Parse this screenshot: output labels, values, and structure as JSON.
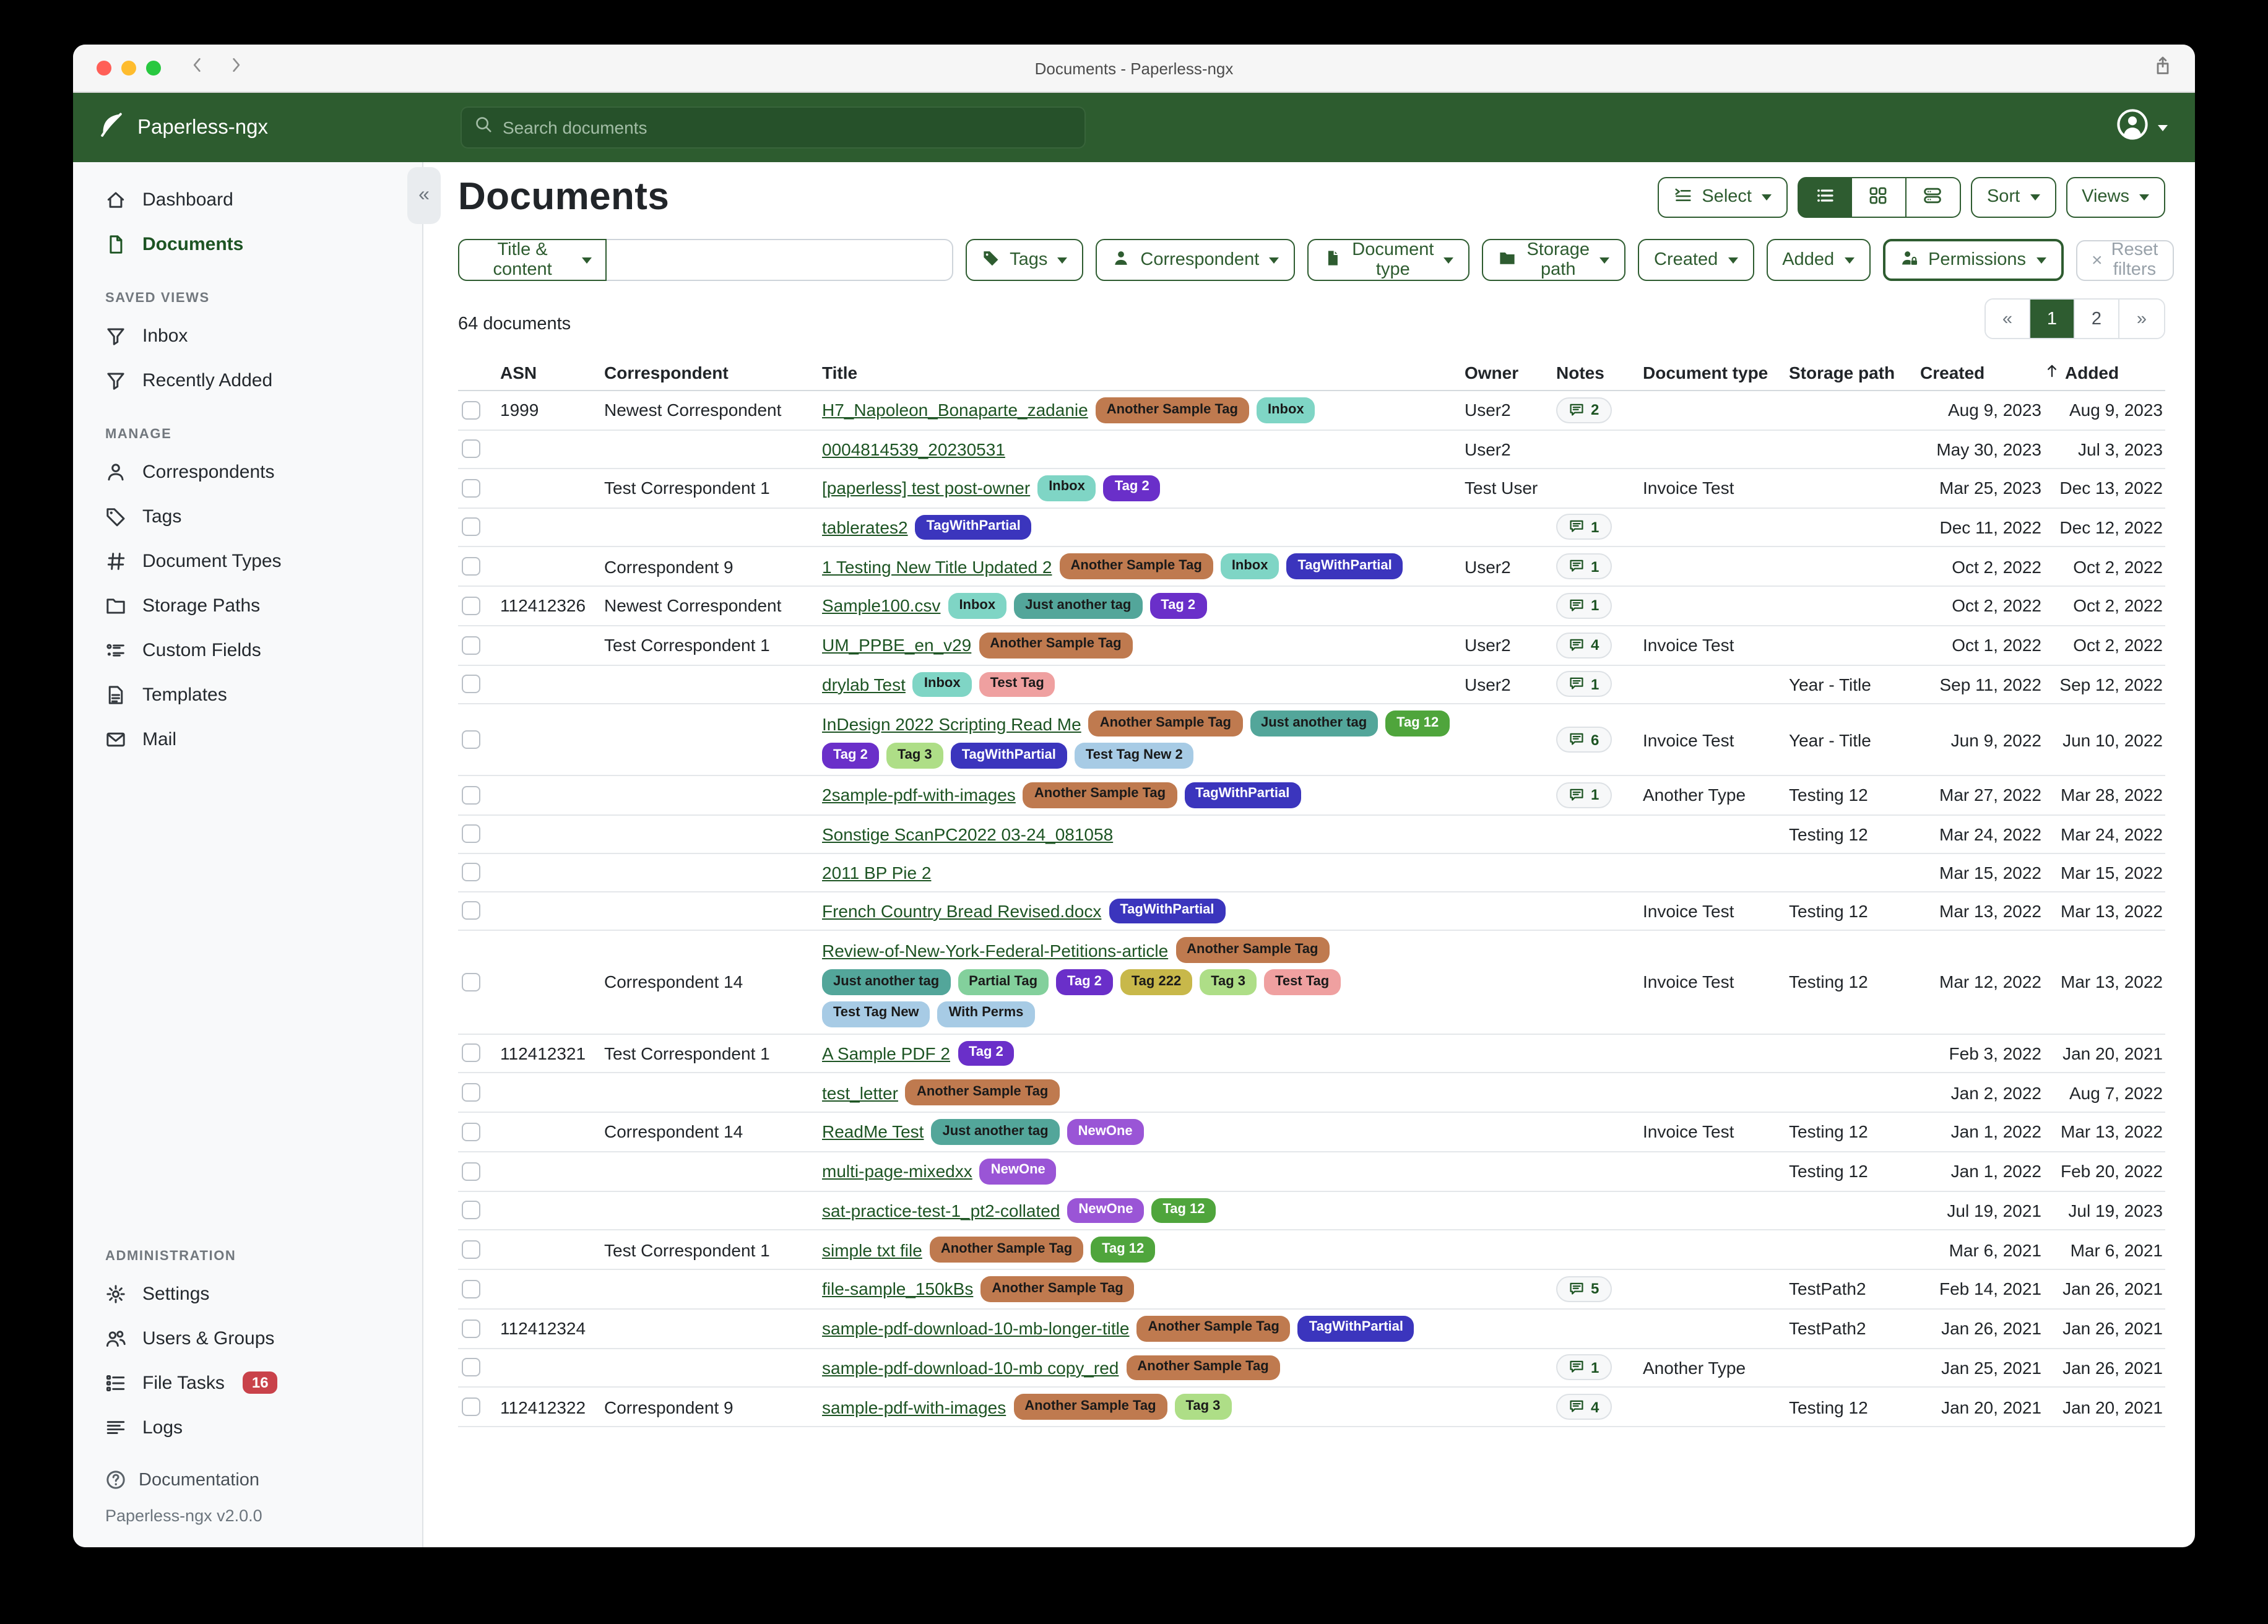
{
  "titlebar": {
    "title": "Documents - Paperless-ngx"
  },
  "navbar": {
    "brand": "Paperless-ngx",
    "search_placeholder": "Search documents"
  },
  "sidebar": {
    "sections": [
      {
        "header": "",
        "items": [
          {
            "icon": "house",
            "label": "Dashboard"
          },
          {
            "icon": "doc",
            "label": "Documents",
            "active": true
          }
        ]
      },
      {
        "header": "SAVED VIEWS",
        "items": [
          {
            "icon": "funnel",
            "label": "Inbox"
          },
          {
            "icon": "funnel",
            "label": "Recently Added"
          }
        ]
      },
      {
        "header": "MANAGE",
        "items": [
          {
            "icon": "person",
            "label": "Correspondents"
          },
          {
            "icon": "tag",
            "label": "Tags"
          },
          {
            "icon": "hash",
            "label": "Document Types"
          },
          {
            "icon": "folder",
            "label": "Storage Paths"
          },
          {
            "icon": "fields",
            "label": "Custom Fields"
          },
          {
            "icon": "template",
            "label": "Templates"
          },
          {
            "icon": "mail",
            "label": "Mail"
          }
        ]
      },
      {
        "header": "ADMINISTRATION",
        "items": [
          {
            "icon": "gear",
            "label": "Settings"
          },
          {
            "icon": "users",
            "label": "Users & Groups"
          },
          {
            "icon": "tasks",
            "label": "File Tasks",
            "badge": "16"
          },
          {
            "icon": "logs",
            "label": "Logs"
          }
        ]
      }
    ],
    "footer": {
      "documentation": "Documentation",
      "version": "Paperless-ngx v2.0.0"
    }
  },
  "page": {
    "heading": "Documents"
  },
  "toolbar": {
    "select_label": "Select",
    "sort_label": "Sort",
    "views_label": "Views",
    "view_modes": [
      {
        "icon": "list",
        "name": "list-view",
        "active": true
      },
      {
        "icon": "grid",
        "name": "grid-view",
        "active": false
      },
      {
        "icon": "hlist",
        "name": "detail-view",
        "active": false
      }
    ]
  },
  "filters": {
    "combo_label": "Title & content",
    "combo_value": "",
    "buttons": [
      {
        "icon": "tag-filled",
        "label": "Tags"
      },
      {
        "icon": "person-filled",
        "label": "Correspondent"
      },
      {
        "icon": "file-filled",
        "label": "Document type"
      },
      {
        "icon": "folder-filled",
        "label": "Storage path"
      },
      {
        "icon": "",
        "label": "Created"
      },
      {
        "icon": "",
        "label": "Added"
      },
      {
        "icon": "person-lock",
        "label": "Permissions",
        "emphasis": true
      }
    ],
    "reset_label": "Reset filters"
  },
  "summary": {
    "count_text": "64 documents"
  },
  "pagination": {
    "prev": "«",
    "pages": [
      "1",
      "2"
    ],
    "active": "1",
    "next": "»"
  },
  "table": {
    "headers": [
      "",
      "ASN",
      "Correspondent",
      "Title",
      "Owner",
      "Notes",
      "Document type",
      "Storage path",
      "Created",
      "Added"
    ],
    "sort_column": "Added",
    "sort_direction": "ascending",
    "rows": [
      {
        "asn": "1999",
        "correspondent": "Newest Correspondent",
        "title": "H7_Napoleon_Bonaparte_zadanie",
        "tags": [
          "Another Sample Tag",
          "Inbox"
        ],
        "owner": "User2",
        "notes": "2",
        "doctype": "",
        "storage": "",
        "created": "Aug 9, 2023",
        "added": "Aug 9, 2023"
      },
      {
        "asn": "",
        "correspondent": "",
        "title": "0004814539_20230531",
        "tags": [],
        "owner": "User2",
        "notes": "",
        "doctype": "",
        "storage": "",
        "created": "May 30, 2023",
        "added": "Jul 3, 2023"
      },
      {
        "asn": "",
        "correspondent": "Test Correspondent 1",
        "title": "[paperless] test post-owner",
        "tags": [
          "Inbox",
          "Tag 2"
        ],
        "owner": "Test User",
        "notes": "",
        "doctype": "Invoice Test",
        "storage": "",
        "created": "Mar 25, 2023",
        "added": "Dec 13, 2022"
      },
      {
        "asn": "",
        "correspondent": "",
        "title": "tablerates2",
        "tags": [
          "TagWithPartial"
        ],
        "owner": "",
        "notes": "1",
        "doctype": "",
        "storage": "",
        "created": "Dec 11, 2022",
        "added": "Dec 12, 2022"
      },
      {
        "asn": "",
        "correspondent": "Correspondent 9",
        "title": "1 Testing New Title Updated 2",
        "tags": [
          "Another Sample Tag",
          "Inbox",
          "TagWithPartial"
        ],
        "owner": "User2",
        "notes": "1",
        "doctype": "",
        "storage": "",
        "created": "Oct 2, 2022",
        "added": "Oct 2, 2022"
      },
      {
        "asn": "112412326",
        "correspondent": "Newest Correspondent",
        "title": "Sample100.csv",
        "tags": [
          "Inbox",
          "Just another tag",
          "Tag 2"
        ],
        "owner": "",
        "notes": "1",
        "doctype": "",
        "storage": "",
        "created": "Oct 2, 2022",
        "added": "Oct 2, 2022"
      },
      {
        "asn": "",
        "correspondent": "Test Correspondent 1",
        "title": "UM_PPBE_en_v29",
        "tags": [
          "Another Sample Tag"
        ],
        "owner": "User2",
        "notes": "4",
        "doctype": "Invoice Test",
        "storage": "",
        "created": "Oct 1, 2022",
        "added": "Oct 2, 2022"
      },
      {
        "asn": "",
        "correspondent": "",
        "title": "drylab Test",
        "tags": [
          "Inbox",
          "Test Tag"
        ],
        "owner": "User2",
        "notes": "1",
        "doctype": "",
        "storage": "Year - Title",
        "created": "Sep 11, 2022",
        "added": "Sep 12, 2022"
      },
      {
        "asn": "",
        "correspondent": "",
        "title": "InDesign 2022 Scripting Read Me",
        "tags": [
          "Another Sample Tag",
          "Just another tag",
          "Tag 12",
          "Tag 2",
          "Tag 3",
          "TagWithPartial",
          "Test Tag New 2"
        ],
        "owner": "",
        "notes": "6",
        "doctype": "Invoice Test",
        "storage": "Year - Title",
        "created": "Jun 9, 2022",
        "added": "Jun 10, 2022"
      },
      {
        "asn": "",
        "correspondent": "",
        "title": "2sample-pdf-with-images",
        "tags": [
          "Another Sample Tag",
          "TagWithPartial"
        ],
        "owner": "",
        "notes": "1",
        "doctype": "Another Type",
        "storage": "Testing 12",
        "created": "Mar 27, 2022",
        "added": "Mar 28, 2022"
      },
      {
        "asn": "",
        "correspondent": "",
        "title": "Sonstige ScanPC2022 03-24_081058",
        "tags": [],
        "owner": "",
        "notes": "",
        "doctype": "",
        "storage": "Testing 12",
        "created": "Mar 24, 2022",
        "added": "Mar 24, 2022"
      },
      {
        "asn": "",
        "correspondent": "",
        "title": "2011 BP Pie 2",
        "tags": [],
        "owner": "",
        "notes": "",
        "doctype": "",
        "storage": "",
        "created": "Mar 15, 2022",
        "added": "Mar 15, 2022"
      },
      {
        "asn": "",
        "correspondent": "",
        "title": "French Country Bread Revised.docx",
        "tags": [
          "TagWithPartial"
        ],
        "owner": "",
        "notes": "",
        "doctype": "Invoice Test",
        "storage": "Testing 12",
        "created": "Mar 13, 2022",
        "added": "Mar 13, 2022"
      },
      {
        "asn": "",
        "correspondent": "Correspondent 14",
        "title": "Review-of-New-York-Federal-Petitions-article",
        "tags": [
          "Another Sample Tag",
          "Just another tag",
          "Partial Tag",
          "Tag 2",
          "Tag 222",
          "Tag 3",
          "Test Tag",
          "Test Tag New",
          "With Perms"
        ],
        "owner": "",
        "notes": "",
        "doctype": "Invoice Test",
        "storage": "Testing 12",
        "created": "Mar 12, 2022",
        "added": "Mar 13, 2022"
      },
      {
        "asn": "112412321",
        "correspondent": "Test Correspondent 1",
        "title": "A Sample PDF 2",
        "tags": [
          "Tag 2"
        ],
        "owner": "",
        "notes": "",
        "doctype": "",
        "storage": "",
        "created": "Feb 3, 2022",
        "added": "Jan 20, 2021"
      },
      {
        "asn": "",
        "correspondent": "",
        "title": "test_letter",
        "tags": [
          "Another Sample Tag"
        ],
        "owner": "",
        "notes": "",
        "doctype": "",
        "storage": "",
        "created": "Jan 2, 2022",
        "added": "Aug 7, 2022"
      },
      {
        "asn": "",
        "correspondent": "Correspondent 14",
        "title": "ReadMe Test",
        "tags": [
          "Just another tag",
          "NewOne"
        ],
        "owner": "",
        "notes": "",
        "doctype": "Invoice Test",
        "storage": "Testing 12",
        "created": "Jan 1, 2022",
        "added": "Mar 13, 2022"
      },
      {
        "asn": "",
        "correspondent": "",
        "title": "multi-page-mixedxx",
        "tags": [
          "NewOne"
        ],
        "owner": "",
        "notes": "",
        "doctype": "",
        "storage": "Testing 12",
        "created": "Jan 1, 2022",
        "added": "Feb 20, 2022"
      },
      {
        "asn": "",
        "correspondent": "",
        "title": "sat-practice-test-1_pt2-collated",
        "tags": [
          "NewOne",
          "Tag 12"
        ],
        "owner": "",
        "notes": "",
        "doctype": "",
        "storage": "",
        "created": "Jul 19, 2021",
        "added": "Jul 19, 2023"
      },
      {
        "asn": "",
        "correspondent": "Test Correspondent 1",
        "title": "simple txt file",
        "tags": [
          "Another Sample Tag",
          "Tag 12"
        ],
        "owner": "",
        "notes": "",
        "doctype": "",
        "storage": "",
        "created": "Mar 6, 2021",
        "added": "Mar 6, 2021"
      },
      {
        "asn": "",
        "correspondent": "",
        "title": "file-sample_150kBs",
        "tags": [
          "Another Sample Tag"
        ],
        "owner": "",
        "notes": "5",
        "doctype": "",
        "storage": "TestPath2",
        "created": "Feb 14, 2021",
        "added": "Jan 26, 2021"
      },
      {
        "asn": "112412324",
        "correspondent": "",
        "title": "sample-pdf-download-10-mb-longer-title",
        "tags": [
          "Another Sample Tag",
          "TagWithPartial"
        ],
        "owner": "",
        "notes": "",
        "doctype": "",
        "storage": "TestPath2",
        "created": "Jan 26, 2021",
        "added": "Jan 26, 2021"
      },
      {
        "asn": "",
        "correspondent": "",
        "title": "sample-pdf-download-10-mb copy_red",
        "tags": [
          "Another Sample Tag"
        ],
        "owner": "",
        "notes": "1",
        "doctype": "Another Type",
        "storage": "",
        "created": "Jan 25, 2021",
        "added": "Jan 26, 2021"
      },
      {
        "asn": "112412322",
        "correspondent": "Correspondent 9",
        "title": "sample-pdf-with-images",
        "tags": [
          "Another Sample Tag",
          "Tag 3"
        ],
        "owner": "",
        "notes": "4",
        "doctype": "",
        "storage": "Testing 12",
        "created": "Jan 20, 2021",
        "added": "Jan 20, 2021"
      }
    ]
  },
  "tag_colors": {
    "Another Sample Tag": {
      "bg": "#bf7a4f",
      "fg": "#1a1a1a"
    },
    "Inbox": {
      "bg": "#7fd5c5",
      "fg": "#1a1a1a"
    },
    "Tag 2": {
      "bg": "#6a2fc9",
      "fg": "#ffffff"
    },
    "TagWithPartial": {
      "bg": "#3b35bd",
      "fg": "#ffffff"
    },
    "Just another tag": {
      "bg": "#53a69a",
      "fg": "#1a1a1a"
    },
    "Tag 12": {
      "bg": "#4fa53c",
      "fg": "#ffffff"
    },
    "Tag 3": {
      "bg": "#aede87",
      "fg": "#1a1a1a"
    },
    "Test Tag": {
      "bg": "#efa0a0",
      "fg": "#1a1a1a"
    },
    "Test Tag New 2": {
      "bg": "#a7cbe5",
      "fg": "#1a1a1a"
    },
    "Partial Tag": {
      "bg": "#83d09c",
      "fg": "#1a1a1a"
    },
    "Tag 222": {
      "bg": "#c8b84a",
      "fg": "#1a1a1a"
    },
    "Test Tag New": {
      "bg": "#a7cbe5",
      "fg": "#1a1a1a"
    },
    "With Perms": {
      "bg": "#a7cbe5",
      "fg": "#1a1a1a"
    },
    "NewOne": {
      "bg": "#9a55d6",
      "fg": "#ffffff"
    }
  },
  "colors": {
    "navbar_green": "#2d5c2f",
    "primary_green": "#2e5c30",
    "link_green": "#1d5423",
    "badge_red": "#c9424a"
  }
}
